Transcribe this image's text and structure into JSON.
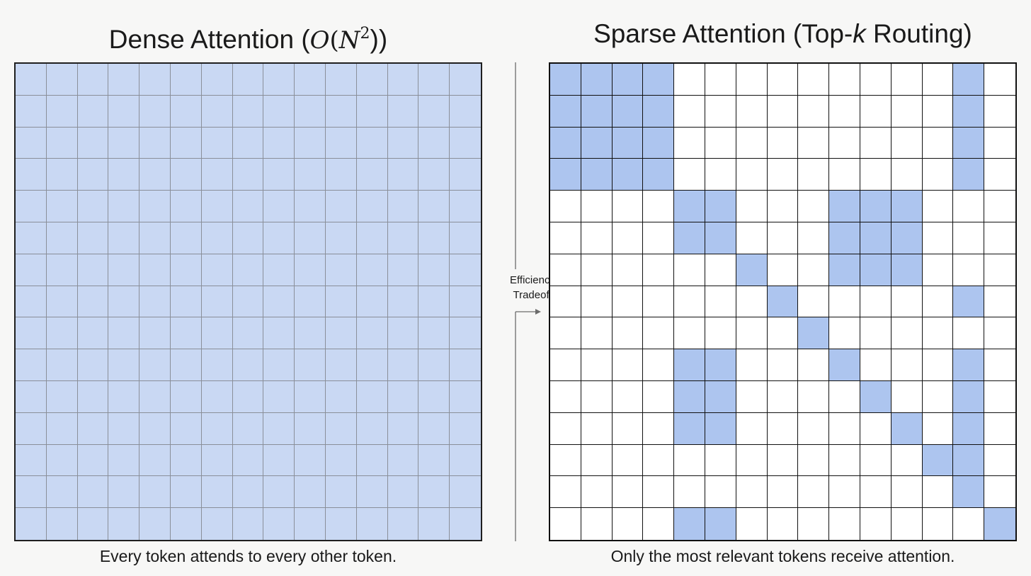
{
  "dense": {
    "title_text": "Dense Attention (",
    "title_math_o": "O",
    "title_math_n": "N",
    "title_math_exp": "2",
    "title_close": "))",
    "caption": "Every token attends to every other token.",
    "size": 15
  },
  "sparse": {
    "title_prefix": "Sparse Attention (Top-",
    "title_k": "k",
    "title_suffix": " Routing)",
    "caption": "Only the most relevant tokens receive attention.",
    "size": 15,
    "active_cells": [
      [
        0,
        0
      ],
      [
        0,
        1
      ],
      [
        0,
        2
      ],
      [
        0,
        3
      ],
      [
        0,
        13
      ],
      [
        1,
        0
      ],
      [
        1,
        1
      ],
      [
        1,
        2
      ],
      [
        1,
        3
      ],
      [
        1,
        13
      ],
      [
        2,
        0
      ],
      [
        2,
        1
      ],
      [
        2,
        2
      ],
      [
        2,
        3
      ],
      [
        2,
        13
      ],
      [
        3,
        0
      ],
      [
        3,
        1
      ],
      [
        3,
        2
      ],
      [
        3,
        3
      ],
      [
        3,
        13
      ],
      [
        4,
        4
      ],
      [
        4,
        5
      ],
      [
        4,
        9
      ],
      [
        4,
        10
      ],
      [
        4,
        11
      ],
      [
        5,
        4
      ],
      [
        5,
        5
      ],
      [
        5,
        9
      ],
      [
        5,
        10
      ],
      [
        5,
        11
      ],
      [
        6,
        6
      ],
      [
        6,
        9
      ],
      [
        6,
        10
      ],
      [
        6,
        11
      ],
      [
        7,
        7
      ],
      [
        7,
        13
      ],
      [
        8,
        8
      ],
      [
        9,
        4
      ],
      [
        9,
        5
      ],
      [
        9,
        9
      ],
      [
        9,
        13
      ],
      [
        10,
        4
      ],
      [
        10,
        5
      ],
      [
        10,
        10
      ],
      [
        10,
        13
      ],
      [
        11,
        4
      ],
      [
        11,
        5
      ],
      [
        11,
        11
      ],
      [
        11,
        13
      ],
      [
        12,
        12
      ],
      [
        12,
        13
      ],
      [
        13,
        13
      ],
      [
        14,
        4
      ],
      [
        14,
        5
      ],
      [
        14,
        14
      ]
    ]
  },
  "divider": {
    "line1": "Efficiency",
    "line2": "Tradeoff"
  },
  "colors": {
    "dense_fill": "#c9d8f3",
    "sparse_active": "#adc5ef",
    "sparse_empty": "#ffffff",
    "background": "#f7f7f6"
  }
}
